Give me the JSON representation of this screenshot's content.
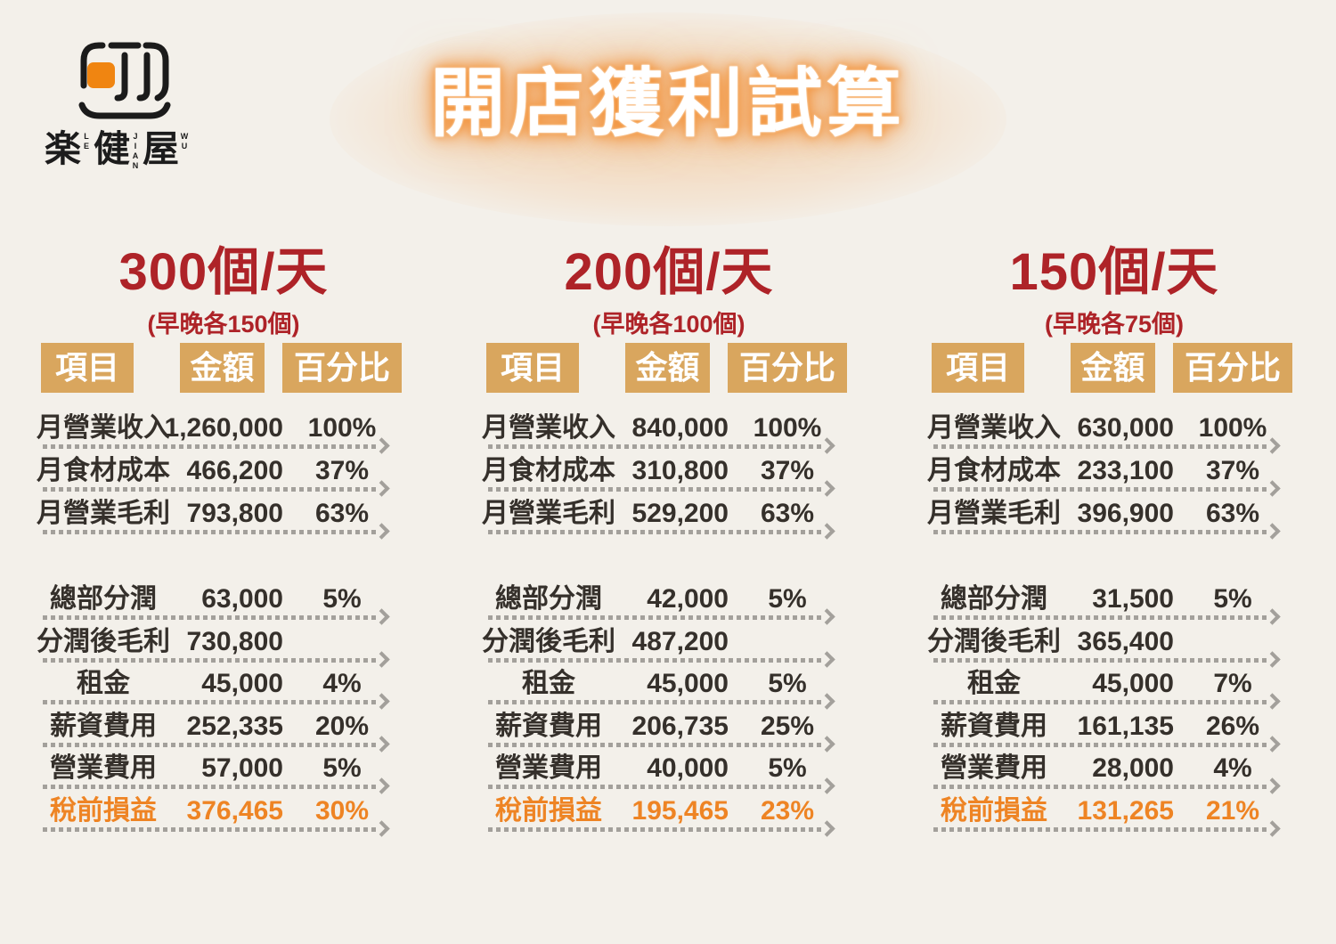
{
  "page": {
    "title": "開店獲利試算",
    "background_color": "#F3F0EA",
    "title_glow_color": "#F2913A"
  },
  "logo": {
    "accent_color": "#F08511",
    "wordmark": [
      {
        "char": "楽",
        "latin": "LE"
      },
      {
        "char": "健",
        "latin": "JIAN"
      },
      {
        "char": "屋",
        "latin": "WU"
      }
    ]
  },
  "table_headers": {
    "item": "項目",
    "amount": "金額",
    "percent": "百分比"
  },
  "colors": {
    "heading_red": "#AE2328",
    "header_box_tan": "#D9A65E",
    "text_dark": "#35302B",
    "highlight_orange": "#EE8424",
    "dotted_line_gray": "#A3A09B"
  },
  "chart_data": [
    {
      "type": "table",
      "title": "300個/天",
      "subtitle": "(早晚各150個)",
      "columns": [
        "項目",
        "金額",
        "百分比"
      ],
      "sections": [
        {
          "rows": [
            {
              "label": "月營業收入",
              "amount": "1,260,000",
              "percent": "100%"
            },
            {
              "label": "月食材成本",
              "amount": "466,200",
              "percent": "37%"
            },
            {
              "label": "月營業毛利",
              "amount": "793,800",
              "percent": "63%"
            }
          ]
        },
        {
          "rows": [
            {
              "label": "總部分潤",
              "amount": "63,000",
              "percent": "5%"
            },
            {
              "label": "分潤後毛利",
              "amount": "730,800",
              "percent": ""
            },
            {
              "label": "租金",
              "amount": "45,000",
              "percent": "4%"
            },
            {
              "label": "薪資費用",
              "amount": "252,335",
              "percent": "20%"
            },
            {
              "label": "營業費用",
              "amount": "57,000",
              "percent": "5%"
            },
            {
              "label": "稅前損益",
              "amount": "376,465",
              "percent": "30%",
              "highlight": true
            }
          ]
        }
      ]
    },
    {
      "type": "table",
      "title": "200個/天",
      "subtitle": "(早晚各100個)",
      "columns": [
        "項目",
        "金額",
        "百分比"
      ],
      "sections": [
        {
          "rows": [
            {
              "label": "月營業收入",
              "amount": "840,000",
              "percent": "100%"
            },
            {
              "label": "月食材成本",
              "amount": "310,800",
              "percent": "37%"
            },
            {
              "label": "月營業毛利",
              "amount": "529,200",
              "percent": "63%"
            }
          ]
        },
        {
          "rows": [
            {
              "label": "總部分潤",
              "amount": "42,000",
              "percent": "5%"
            },
            {
              "label": "分潤後毛利",
              "amount": "487,200",
              "percent": ""
            },
            {
              "label": "租金",
              "amount": "45,000",
              "percent": "5%"
            },
            {
              "label": "薪資費用",
              "amount": "206,735",
              "percent": "25%"
            },
            {
              "label": "營業費用",
              "amount": "40,000",
              "percent": "5%"
            },
            {
              "label": "稅前損益",
              "amount": "195,465",
              "percent": "23%",
              "highlight": true
            }
          ]
        }
      ]
    },
    {
      "type": "table",
      "title": "150個/天",
      "subtitle": "(早晚各75個)",
      "columns": [
        "項目",
        "金額",
        "百分比"
      ],
      "sections": [
        {
          "rows": [
            {
              "label": "月營業收入",
              "amount": "630,000",
              "percent": "100%"
            },
            {
              "label": "月食材成本",
              "amount": "233,100",
              "percent": "37%"
            },
            {
              "label": "月營業毛利",
              "amount": "396,900",
              "percent": "63%"
            }
          ]
        },
        {
          "rows": [
            {
              "label": "總部分潤",
              "amount": "31,500",
              "percent": "5%"
            },
            {
              "label": "分潤後毛利",
              "amount": "365,400",
              "percent": ""
            },
            {
              "label": "租金",
              "amount": "45,000",
              "percent": "7%"
            },
            {
              "label": "薪資費用",
              "amount": "161,135",
              "percent": "26%"
            },
            {
              "label": "營業費用",
              "amount": "28,000",
              "percent": "4%"
            },
            {
              "label": "稅前損益",
              "amount": "131,265",
              "percent": "21%",
              "highlight": true
            }
          ]
        }
      ]
    }
  ]
}
